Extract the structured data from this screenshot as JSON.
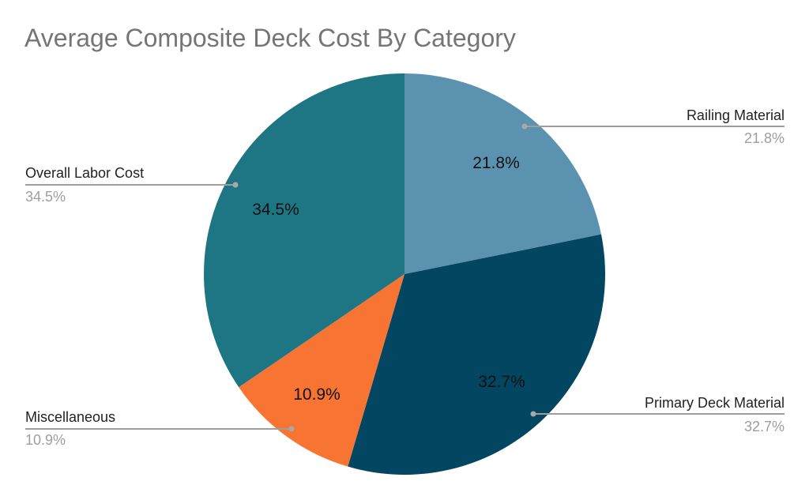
{
  "title": "Average Composite Deck Cost By Category",
  "chart_data": {
    "type": "pie",
    "title": "Average Composite Deck Cost By Category",
    "start_angle": "12 o'clock, clockwise",
    "slices": [
      {
        "label": "Railing Material",
        "value": 21.8,
        "display": "21.8%",
        "color": "#5b92b0"
      },
      {
        "label": "Primary Deck Material",
        "value": 32.7,
        "display": "32.7%",
        "color": "#034662"
      },
      {
        "label": "Miscellaneous",
        "value": 10.9,
        "display": "10.9%",
        "color": "#f77433"
      },
      {
        "label": "Overall Labor Cost",
        "value": 34.5,
        "display": "34.5%",
        "color": "#1e7684"
      }
    ],
    "legend": "callout labels with leader lines"
  },
  "callouts": {
    "railing": {
      "label": "Railing Material",
      "value": "21.8%"
    },
    "primary": {
      "label": "Primary Deck Material",
      "value": "32.7%"
    },
    "misc": {
      "label": "Miscellaneous",
      "value": "10.9%"
    },
    "labor": {
      "label": "Overall Labor Cost",
      "value": "34.5%"
    }
  },
  "colors": {
    "leader_line": "#9e9e9e",
    "title": "#757575"
  }
}
